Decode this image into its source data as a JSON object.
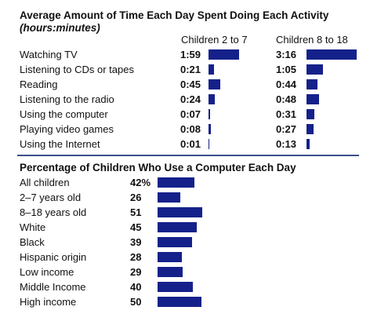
{
  "colors": {
    "bar": "#15218a",
    "divider": "#3a4f8a"
  },
  "chart_data": [
    {
      "type": "bar",
      "title": "Average Amount of Time Each Day Spent Doing Each Activity",
      "subtitle": "(hours:minutes)",
      "categories": [
        "Watching TV",
        "Listening to CDs or tapes",
        "Reading",
        "Listening to the radio",
        "Using the computer",
        "Playing video games",
        "Using the Internet"
      ],
      "series": [
        {
          "name": "Children 2 to 7",
          "labels": [
            "1:59",
            "0:21",
            "0:45",
            "0:24",
            "0:07",
            "0:08",
            "0:01"
          ],
          "values": [
            119,
            21,
            45,
            24,
            7,
            8,
            1
          ]
        },
        {
          "name": "Children 8 to 18",
          "labels": [
            "3:16",
            "1:05",
            "0:44",
            "0:48",
            "0:31",
            "0:27",
            "0:13"
          ],
          "values": [
            196,
            65,
            44,
            48,
            31,
            27,
            13
          ]
        }
      ],
      "unit": "minutes"
    },
    {
      "type": "bar",
      "title": "Percentage of Children Who Use a Computer Each Day",
      "categories": [
        "All children",
        "2–7 years old",
        "8–18 years old",
        "White",
        "Black",
        "Hispanic origin",
        "Low income",
        "Middle Income",
        "High income"
      ],
      "labels": [
        "42%",
        "26",
        "51",
        "45",
        "39",
        "28",
        "29",
        "40",
        "50"
      ],
      "values": [
        42,
        26,
        51,
        45,
        39,
        28,
        29,
        40,
        50
      ],
      "unit": "percent"
    }
  ]
}
